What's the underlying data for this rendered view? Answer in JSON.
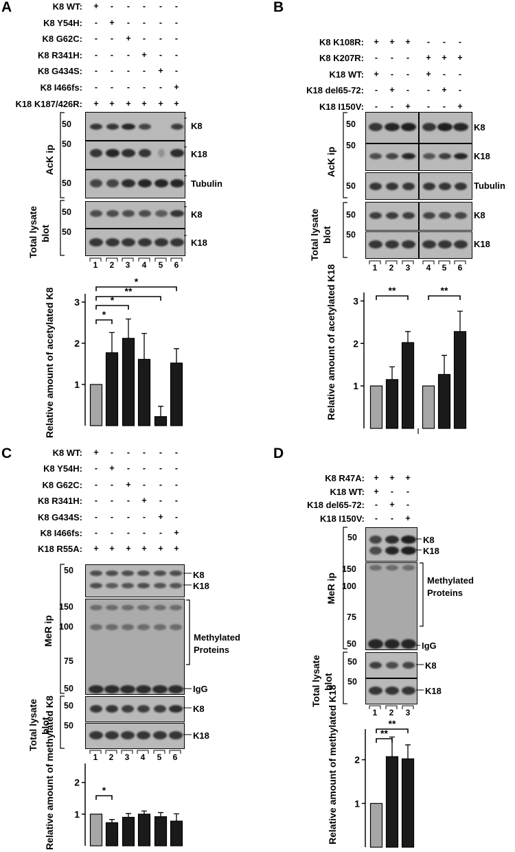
{
  "panels": {
    "A": {
      "letter": "A",
      "conditions": [
        {
          "label": "K8 WT:",
          "signs": [
            "+",
            "-",
            "-",
            "-",
            "-",
            "-"
          ]
        },
        {
          "label": "K8 Y54H:",
          "signs": [
            "-",
            "+",
            "-",
            "-",
            "-",
            "-"
          ]
        },
        {
          "label": "K8 G62C:",
          "signs": [
            "-",
            "-",
            "+",
            "-",
            "-",
            "-"
          ]
        },
        {
          "label": "K8 R341H:",
          "signs": [
            "-",
            "-",
            "-",
            "+",
            "-",
            "-"
          ]
        },
        {
          "label": "K8 G434S:",
          "signs": [
            "-",
            "-",
            "-",
            "-",
            "+",
            "-"
          ]
        },
        {
          "label": "K8 I466fs:",
          "signs": [
            "-",
            "-",
            "-",
            "-",
            "-",
            "+"
          ]
        },
        {
          "label": "K18 K187/426R:",
          "signs": [
            "+",
            "+",
            "+",
            "+",
            "+",
            "+"
          ]
        }
      ],
      "blots": [
        {
          "mw": "50",
          "band": "K8"
        },
        {
          "mw": "50",
          "band": "K18"
        },
        {
          "mw": "50",
          "band": "Tubulin"
        },
        {
          "mw": "50",
          "band": "K8"
        },
        {
          "mw": "50",
          "band": "K18"
        }
      ],
      "group_labels": [
        "AcK ip",
        "Total lysate",
        "blot"
      ],
      "lanes": [
        "1",
        "2",
        "3",
        "4",
        "5",
        "6"
      ],
      "significance": [
        "*",
        "**",
        "*",
        "*"
      ]
    },
    "B": {
      "letter": "B",
      "conditions": [
        {
          "label": "K8 K108R:",
          "signs": [
            "+",
            "+",
            "+",
            "-",
            "-",
            "-"
          ]
        },
        {
          "label": "K8 K207R:",
          "signs": [
            "-",
            "-",
            "-",
            "+",
            "+",
            "+"
          ]
        },
        {
          "label": "K18 WT:",
          "signs": [
            "+",
            "-",
            "-",
            "+",
            "-",
            "-"
          ]
        },
        {
          "label": "K18 del65-72:",
          "signs": [
            "-",
            "+",
            "-",
            "-",
            "+",
            "-"
          ]
        },
        {
          "label": "K18 I150V:",
          "signs": [
            "-",
            "-",
            "+",
            "-",
            "-",
            "+"
          ]
        }
      ],
      "blots": [
        {
          "mw": "50",
          "band": "K8"
        },
        {
          "mw": "50",
          "band": "K18"
        },
        {
          "mw": "50",
          "band": "Tubulin"
        },
        {
          "mw": "50",
          "band": "K8"
        },
        {
          "mw": "50",
          "band": "K18"
        }
      ],
      "group_labels": [
        "AcK ip",
        "Total lysate",
        "blot"
      ],
      "lanes": [
        "1",
        "2",
        "3",
        "4",
        "5",
        "6"
      ],
      "significance": [
        "**",
        "**"
      ]
    },
    "C": {
      "letter": "C",
      "conditions": [
        {
          "label": "K8 WT:",
          "signs": [
            "+",
            "-",
            "-",
            "-",
            "-",
            "-"
          ]
        },
        {
          "label": "K8 Y54H:",
          "signs": [
            "-",
            "+",
            "-",
            "-",
            "-",
            "-"
          ]
        },
        {
          "label": "K8 G62C:",
          "signs": [
            "-",
            "-",
            "+",
            "-",
            "-",
            "-"
          ]
        },
        {
          "label": "K8 R341H:",
          "signs": [
            "-",
            "-",
            "-",
            "+",
            "-",
            "-"
          ]
        },
        {
          "label": "K8 G434S:",
          "signs": [
            "-",
            "-",
            "-",
            "-",
            "+",
            "-"
          ]
        },
        {
          "label": "K8 I466fs:",
          "signs": [
            "-",
            "-",
            "-",
            "-",
            "-",
            "+"
          ]
        },
        {
          "label": "K18 R55A:",
          "signs": [
            "+",
            "+",
            "+",
            "+",
            "+",
            "+"
          ]
        }
      ],
      "blot_top": {
        "mw": "50",
        "bands": [
          "K8",
          "K18"
        ]
      },
      "blot_methyl": {
        "mw": [
          "150",
          "100",
          "75",
          "50"
        ],
        "label": [
          "Methylated",
          "Proteins"
        ],
        "igg": "IgG"
      },
      "blots_total": [
        {
          "mw": "50",
          "band": "K8"
        },
        {
          "mw": "50",
          "band": "K18"
        }
      ],
      "group_labels": [
        "MeR ip",
        "Total lysate",
        "blot"
      ],
      "lanes": [
        "1",
        "2",
        "3",
        "4",
        "5",
        "6"
      ],
      "significance": [
        "*"
      ]
    },
    "D": {
      "letter": "D",
      "conditions": [
        {
          "label": "K8 R47A:",
          "signs": [
            "+",
            "+",
            "+"
          ]
        },
        {
          "label": "K18 WT:",
          "signs": [
            "+",
            "-",
            "-"
          ]
        },
        {
          "label": "K18 del65-72:",
          "signs": [
            "-",
            "+",
            "-"
          ]
        },
        {
          "label": "K18 I150V:",
          "signs": [
            "-",
            "-",
            "+"
          ]
        }
      ],
      "blot_top": {
        "mw": "50",
        "bands": [
          "K8",
          "K18"
        ]
      },
      "blot_methyl": {
        "mw": [
          "150",
          "100",
          "75",
          "50"
        ],
        "label": [
          "Methylated",
          "Proteins"
        ],
        "igg": "IgG"
      },
      "blots_total": [
        {
          "mw": "50",
          "band": "K8"
        },
        {
          "mw": "50",
          "band": "K18"
        }
      ],
      "group_labels": [
        "MeR ip",
        "Total lysate",
        "blot"
      ],
      "lanes": [
        "1",
        "2",
        "3"
      ],
      "significance": [
        "**",
        "**"
      ]
    }
  },
  "chart_data": [
    {
      "panel": "A",
      "type": "bar",
      "categories": [
        "1",
        "2",
        "3",
        "4",
        "5",
        "6"
      ],
      "values": [
        1.0,
        1.77,
        2.12,
        1.61,
        0.22,
        1.52
      ],
      "errors": [
        0,
        0.49,
        0.47,
        0.63,
        0.25,
        0.35
      ],
      "ylabel": "Relative amount of acetylated K8",
      "yticks": [
        1,
        2,
        3
      ],
      "ylim": [
        0,
        3.2
      ],
      "colors": [
        "#a6a6a6",
        "#1a1a1a",
        "#1a1a1a",
        "#1a1a1a",
        "#1a1a1a",
        "#1a1a1a"
      ]
    },
    {
      "panel": "B",
      "type": "bar",
      "categories": [
        "1",
        "2",
        "3",
        "4",
        "5",
        "6"
      ],
      "values": [
        1.0,
        1.15,
        2.02,
        1.0,
        1.27,
        2.28
      ],
      "errors": [
        0,
        0.3,
        0.26,
        0,
        0.45,
        0.48
      ],
      "ylabel": "Relative amount of acetylated K18",
      "yticks": [
        1,
        2,
        3
      ],
      "ylim": [
        0,
        3.2
      ],
      "colors": [
        "#a6a6a6",
        "#1a1a1a",
        "#1a1a1a",
        "#a6a6a6",
        "#1a1a1a",
        "#1a1a1a"
      ]
    },
    {
      "panel": "C",
      "type": "bar",
      "categories": [
        "1",
        "2",
        "3",
        "4",
        "5",
        "6"
      ],
      "values": [
        1.0,
        0.73,
        0.9,
        1.0,
        0.92,
        0.78
      ],
      "errors": [
        0,
        0.1,
        0.12,
        0.1,
        0.13,
        0.23
      ],
      "ylabel": "Relative amount of methylated K8",
      "yticks": [
        1,
        2
      ],
      "ylim": [
        0,
        2.6
      ],
      "colors": [
        "#a6a6a6",
        "#1a1a1a",
        "#1a1a1a",
        "#1a1a1a",
        "#1a1a1a",
        "#1a1a1a"
      ]
    },
    {
      "panel": "D",
      "type": "bar",
      "categories": [
        "1",
        "2",
        "3"
      ],
      "values": [
        1.0,
        2.07,
        2.02
      ],
      "errors": [
        0,
        0.45,
        0.32
      ],
      "ylabel": "Relative amount of methylated K18",
      "yticks": [
        1,
        2
      ],
      "ylim": [
        0,
        2.7
      ],
      "colors": [
        "#a6a6a6",
        "#1a1a1a",
        "#1a1a1a"
      ]
    }
  ]
}
